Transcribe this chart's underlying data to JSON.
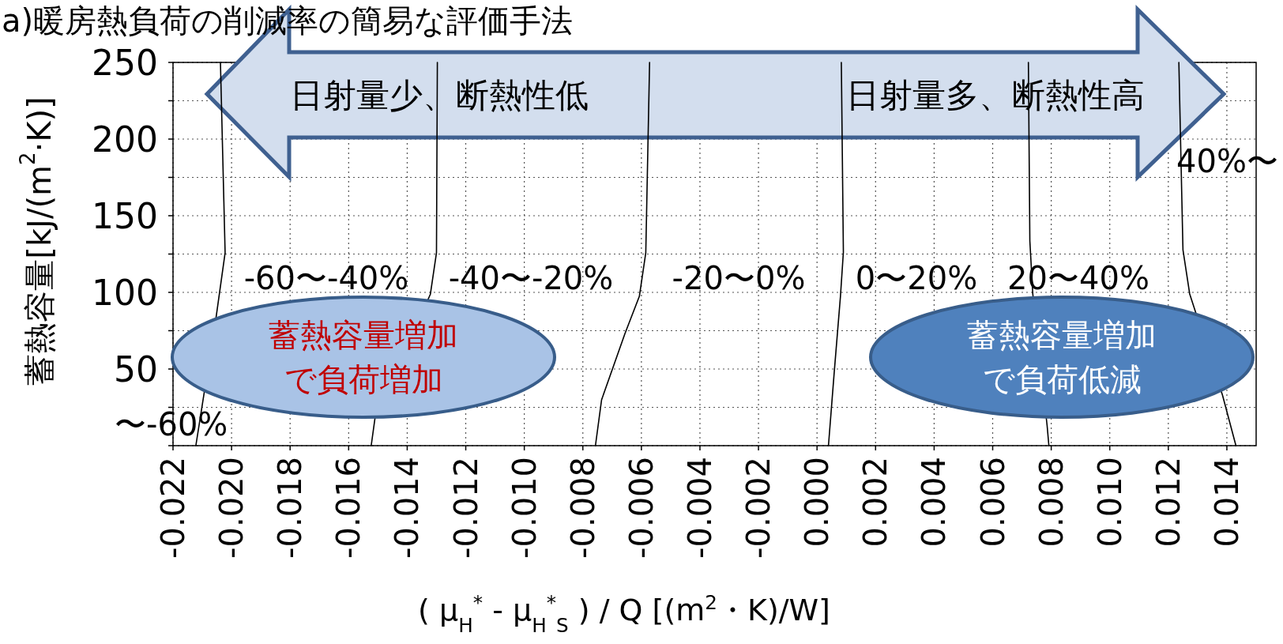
{
  "chart_data": {
    "type": "line",
    "title": "a)暖房熱負荷の削減率の簡易な評価手法",
    "xlabel": "( μ$_{H}$$^{*}$ - μ$_{H}$$^{*}$$_{S}$ ) / Q [(m$^{2}$・K)/W]",
    "ylabel": "蓄熱容量[kJ/(m$^{2}$·K)]",
    "xlim": [
      -0.022,
      0.015
    ],
    "ylim": [
      0,
      250
    ],
    "xticks": [
      {
        "value": -0.022,
        "label": "-0.022"
      },
      {
        "value": -0.02,
        "label": "-0.020"
      },
      {
        "value": -0.018,
        "label": "-0.018"
      },
      {
        "value": -0.016,
        "label": "-0.016"
      },
      {
        "value": -0.014,
        "label": "-0.014"
      },
      {
        "value": -0.012,
        "label": "-0.012"
      },
      {
        "value": -0.01,
        "label": "-0.010"
      },
      {
        "value": -0.008,
        "label": "-0.008"
      },
      {
        "value": -0.006,
        "label": "-0.006"
      },
      {
        "value": -0.004,
        "label": "-0.004"
      },
      {
        "value": -0.002,
        "label": "-0.002"
      },
      {
        "value": 0,
        "label": "0.000"
      },
      {
        "value": 0.002,
        "label": "0.002"
      },
      {
        "value": 0.004,
        "label": "0.004"
      },
      {
        "value": 0.006,
        "label": "0.006"
      },
      {
        "value": 0.008,
        "label": "0.008"
      },
      {
        "value": 0.01,
        "label": "0.010"
      },
      {
        "value": 0.012,
        "label": "0.012"
      },
      {
        "value": 0.014,
        "label": "0.014"
      }
    ],
    "yticks": [
      {
        "value": 0,
        "label": null
      },
      {
        "value": 25,
        "label": null
      },
      50,
      {
        "value": 75,
        "label": null
      },
      100,
      {
        "value": 125,
        "label": null
      },
      150,
      {
        "value": 175,
        "label": null
      },
      200,
      {
        "value": 225,
        "label": null
      },
      250
    ],
    "grid": true,
    "series": [
      {
        "color": "#000000",
        "x": [
          -0.02038,
          -0.02022,
          -0.02052,
          -0.02122
        ],
        "values": [
          250,
          125.8,
          84.9,
          0
        ]
      },
      {
        "color": "#000000",
        "x": [
          -0.01297,
          -0.013,
          -0.01321,
          -0.0151,
          -0.01523
        ],
        "values": [
          250,
          125.8,
          98.7,
          18,
          0
        ]
      },
      {
        "color": "#000000",
        "x": [
          -0.00572,
          -0.00585,
          -0.00607,
          -0.00656,
          -0.00736,
          -0.00757
        ],
        "values": [
          250,
          125.8,
          97.4,
          73.2,
          29.9,
          0
        ]
      },
      {
        "color": "#000000",
        "x": [
          0.00083,
          0.0009,
          0.0008,
          0.00059,
          0.00039
        ],
        "values": [
          250,
          126.3,
          97.4,
          48.5,
          0
        ]
      },
      {
        "color": "#000000",
        "x": [
          0.00722,
          0.00727,
          0.00737,
          0.00786,
          0.00792
        ],
        "values": [
          250,
          133.5,
          99,
          13,
          0
        ]
      },
      {
        "color": "#000000",
        "x": [
          0.01236,
          0.0125,
          0.01273,
          0.01385,
          0.01431
        ],
        "values": [
          250,
          127.8,
          99,
          33,
          0
        ]
      }
    ],
    "annotations": [
      "日射量少、断熱性低",
      "日射量多、断熱性高",
      "〜-60%",
      "-60〜-40%",
      "-40〜-20%",
      "-20〜0%",
      "0〜20%",
      "20〜40%",
      "40%〜",
      "蓄熱容量増加で負荷増加",
      "蓄熱容量増加で負荷低減"
    ]
  }
}
